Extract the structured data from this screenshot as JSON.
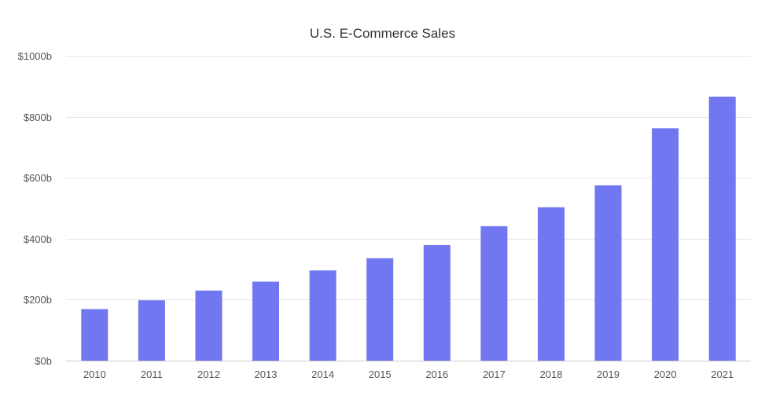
{
  "chart_data": {
    "type": "bar",
    "title": "U.S. E-Commerce Sales",
    "xlabel": "",
    "ylabel": "",
    "categories": [
      "2010",
      "2011",
      "2012",
      "2013",
      "2014",
      "2015",
      "2016",
      "2017",
      "2018",
      "2019",
      "2020",
      "2021"
    ],
    "values": [
      169,
      198,
      230,
      259,
      296,
      336,
      379,
      441,
      503,
      575,
      762,
      866
    ],
    "ylim": [
      0,
      1000
    ],
    "yticks": [
      0,
      200,
      400,
      600,
      800,
      1000
    ],
    "ytick_labels": [
      "$0b",
      "$200b",
      "$400b",
      "$600b",
      "$800b",
      "$1000b"
    ],
    "grid": true,
    "legend": "none",
    "bar_color": "#7077f0"
  }
}
